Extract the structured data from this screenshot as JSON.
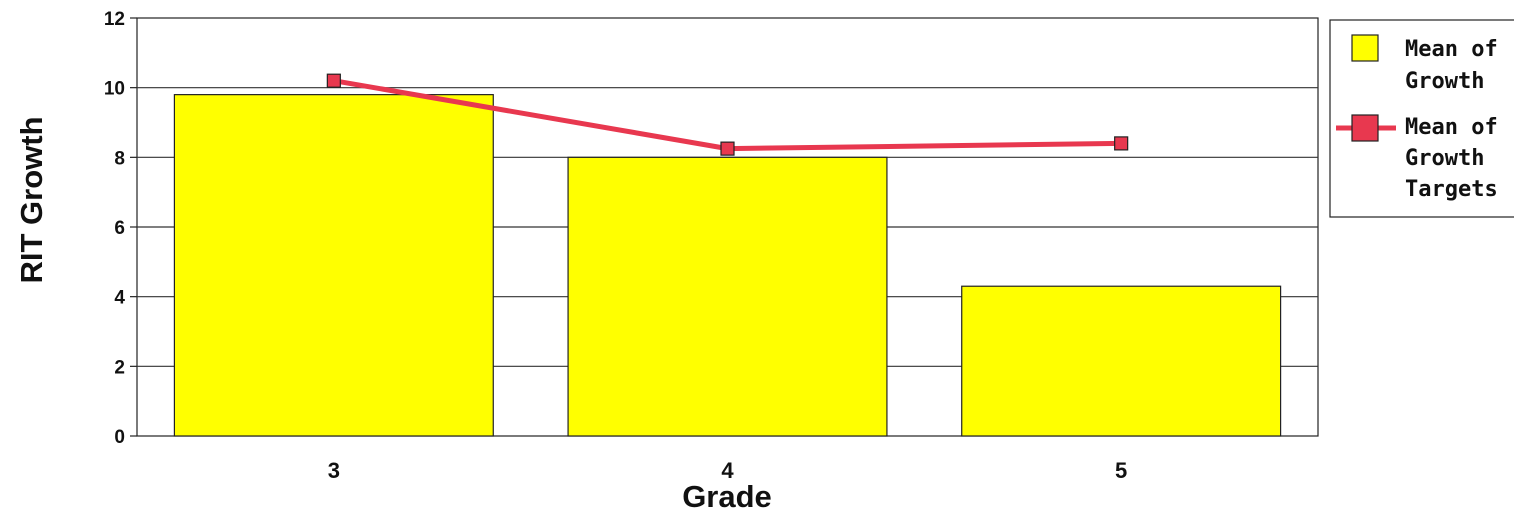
{
  "chart_data": {
    "type": "bar",
    "categories": [
      "3",
      "4",
      "5"
    ],
    "series": [
      {
        "name": "Mean of Growth",
        "type": "bar",
        "values": [
          9.8,
          8.0,
          4.3
        ],
        "color": "#ffff00"
      },
      {
        "name": "Mean of Growth Targets",
        "type": "line",
        "values": [
          10.2,
          8.25,
          8.4
        ],
        "color": "#e8384f"
      }
    ],
    "xlabel": "Grade",
    "ylabel": "RIT Growth",
    "ylim": [
      0,
      12
    ],
    "yticks": [
      "0",
      "2",
      "4",
      "6",
      "8",
      "10",
      "12"
    ],
    "grid": true,
    "legend": {
      "position": "right",
      "entries": [
        {
          "lines": [
            "Mean of",
            "Growth"
          ]
        },
        {
          "lines": [
            "Mean of",
            "Growth",
            "Targets"
          ]
        }
      ]
    }
  }
}
